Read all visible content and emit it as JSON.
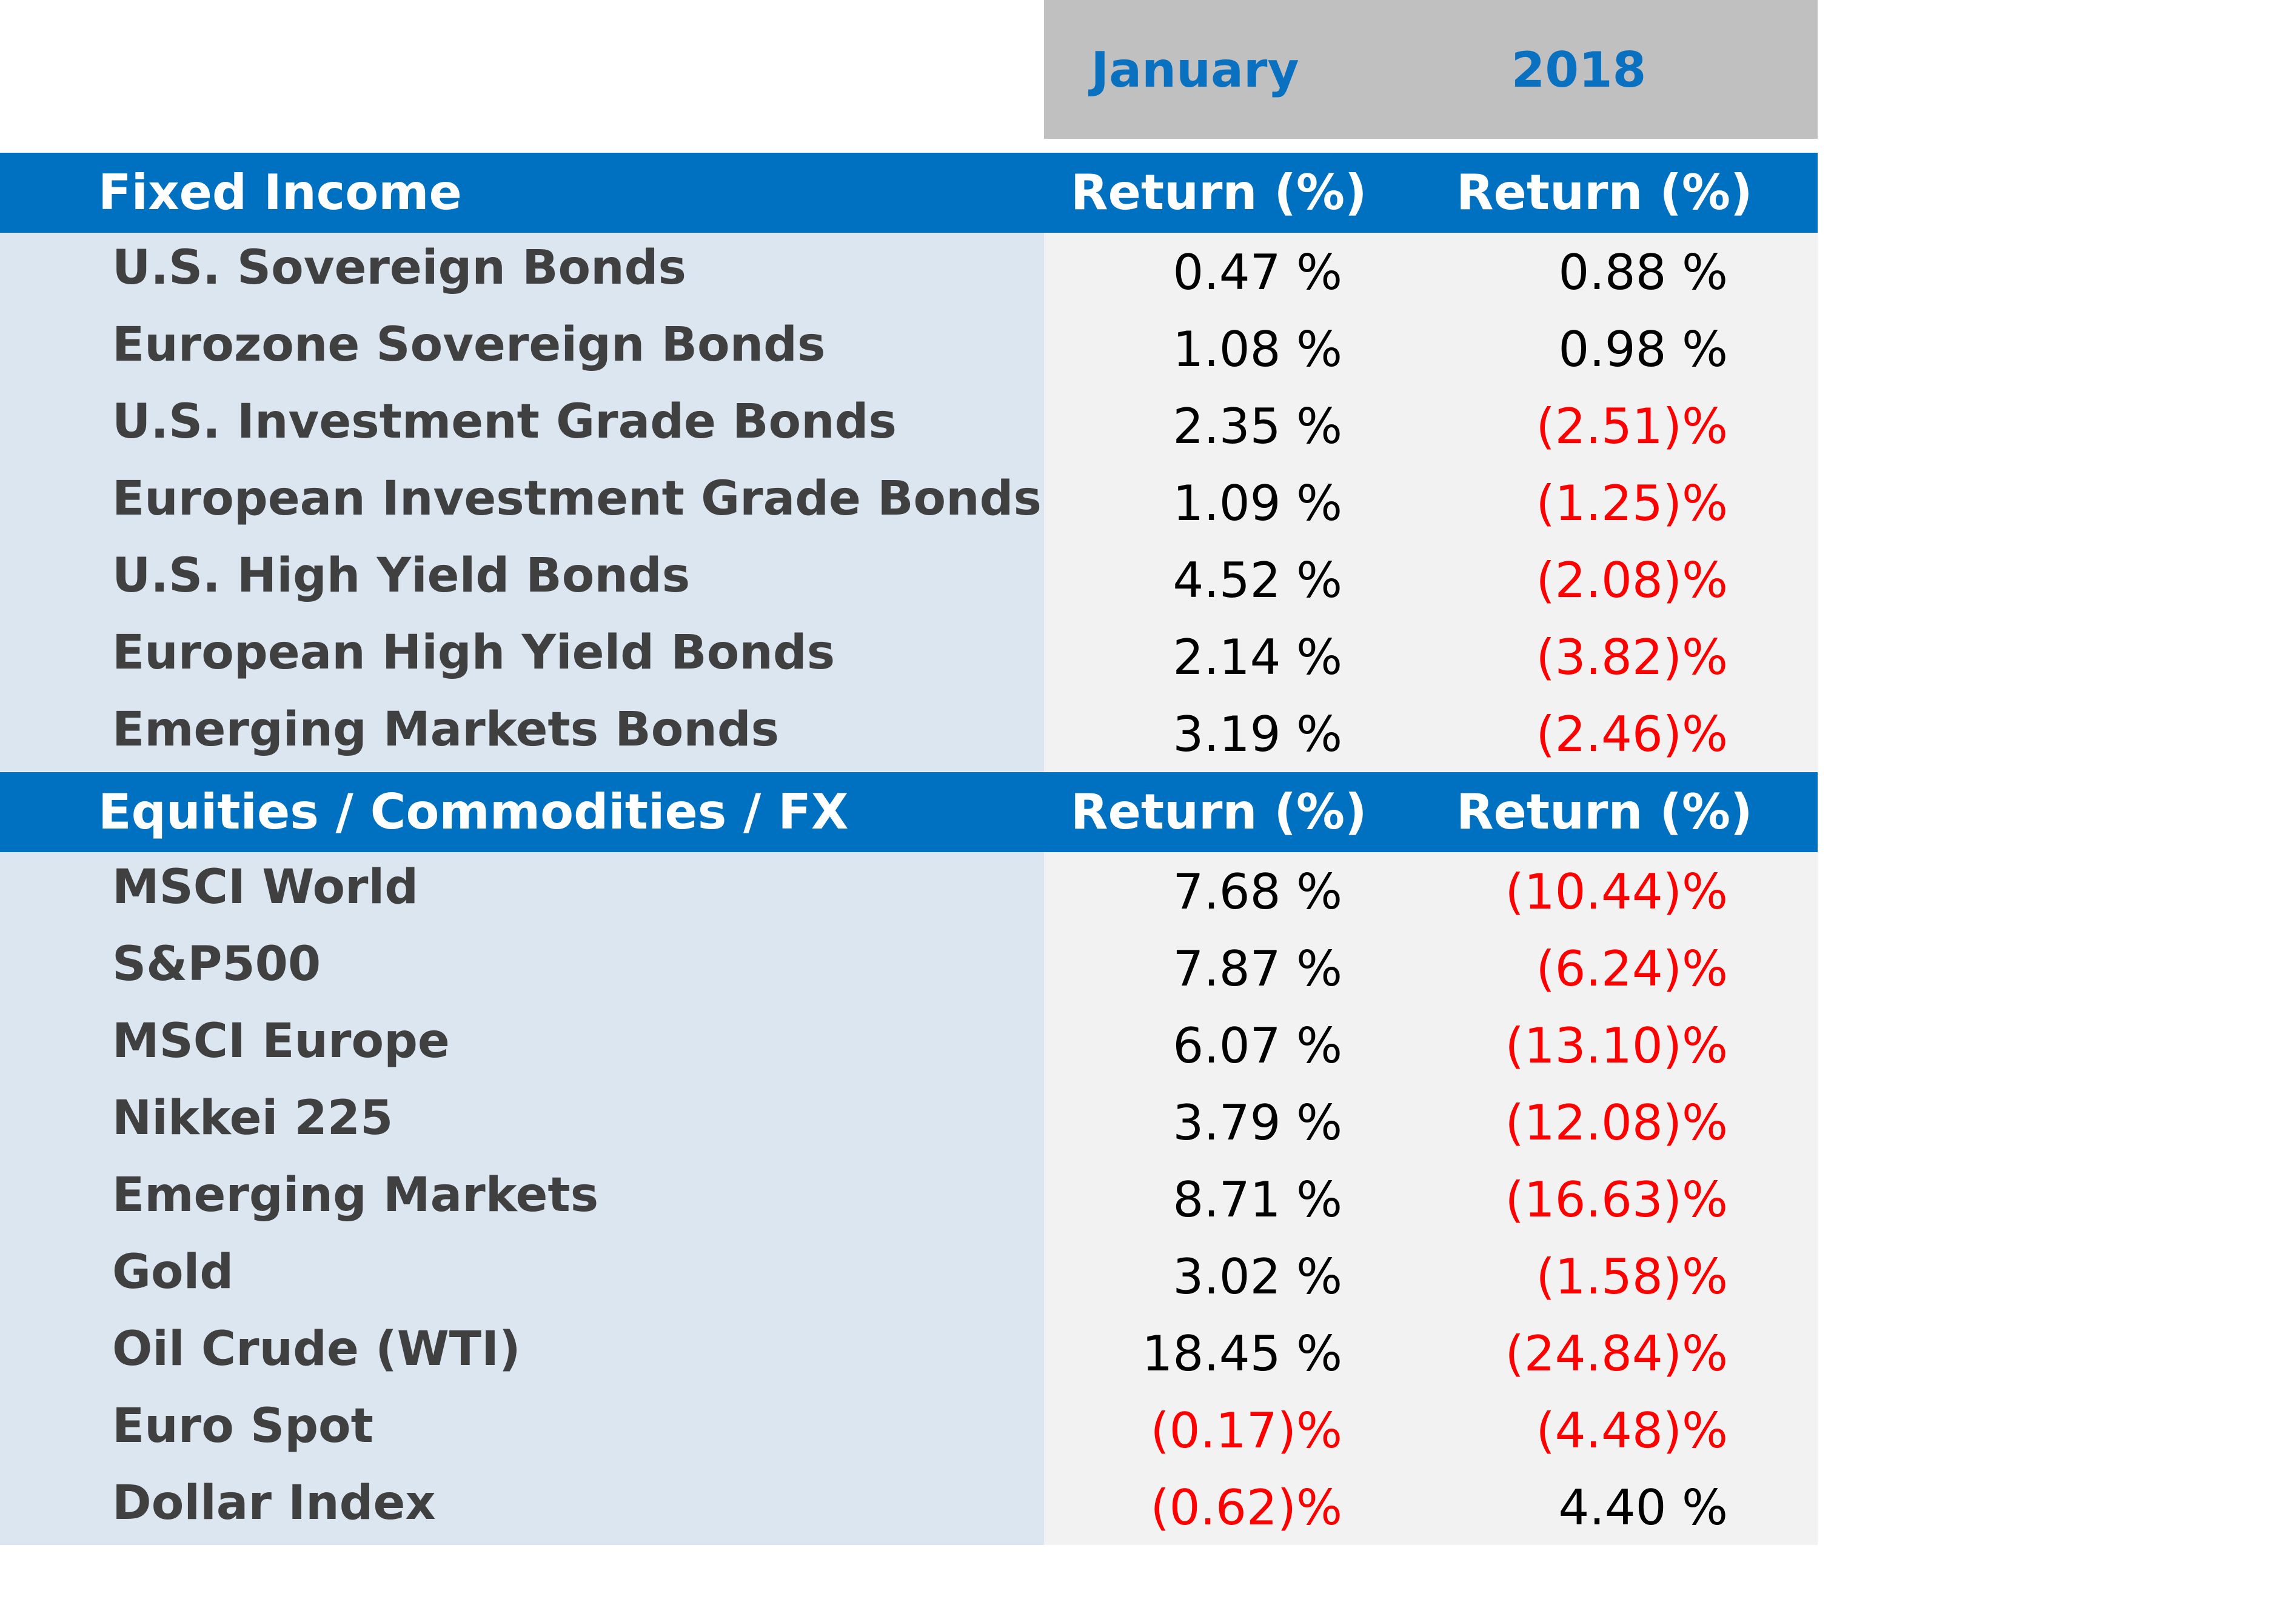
{
  "header": {
    "period_1": "January",
    "period_2": "2018"
  },
  "colors": {
    "band": "#0070c0",
    "header_text": "#0a70c0",
    "negative": "#ff0000",
    "label_bg": "#dce6f0",
    "value_bg": "#f2f2f2"
  },
  "chart_data": {
    "type": "table",
    "columns": [
      "January",
      "2018"
    ],
    "sections": [
      {
        "title": "Fixed Income",
        "col_1": "Return (%)",
        "col_2": "Return (%)",
        "rows": [
          {
            "name": "U.S. Sovereign Bonds",
            "v1": "0.47 %",
            "v2": "0.88 %",
            "n1": false,
            "n2": false
          },
          {
            "name": "Eurozone Sovereign Bonds",
            "v1": "1.08 %",
            "v2": "0.98 %",
            "n1": false,
            "n2": false
          },
          {
            "name": "U.S. Investment Grade Bonds",
            "v1": "2.35 %",
            "v2": "(2.51)%",
            "n1": false,
            "n2": true
          },
          {
            "name": "European Investment Grade Bonds",
            "v1": "1.09 %",
            "v2": "(1.25)%",
            "n1": false,
            "n2": true
          },
          {
            "name": "U.S. High Yield Bonds",
            "v1": "4.52 %",
            "v2": "(2.08)%",
            "n1": false,
            "n2": true
          },
          {
            "name": "European High Yield Bonds",
            "v1": "2.14 %",
            "v2": "(3.82)%",
            "n1": false,
            "n2": true
          },
          {
            "name": "Emerging Markets Bonds",
            "v1": "3.19 %",
            "v2": "(2.46)%",
            "n1": false,
            "n2": true
          }
        ]
      },
      {
        "title": "Equities / Commodities / FX",
        "col_1": "Return (%)",
        "col_2": "Return (%)",
        "rows": [
          {
            "name": "MSCI World",
            "v1": "7.68 %",
            "v2": "(10.44)%",
            "n1": false,
            "n2": true
          },
          {
            "name": "S&P500",
            "v1": "7.87 %",
            "v2": "(6.24)%",
            "n1": false,
            "n2": true
          },
          {
            "name": "MSCI Europe",
            "v1": "6.07 %",
            "v2": "(13.10)%",
            "n1": false,
            "n2": true
          },
          {
            "name": "Nikkei 225",
            "v1": "3.79 %",
            "v2": "(12.08)%",
            "n1": false,
            "n2": true
          },
          {
            "name": "Emerging Markets",
            "v1": "8.71 %",
            "v2": "(16.63)%",
            "n1": false,
            "n2": true
          },
          {
            "name": "Gold",
            "v1": "3.02 %",
            "v2": "(1.58)%",
            "n1": false,
            "n2": true
          },
          {
            "name": "Oil Crude (WTI)",
            "v1": "18.45 %",
            "v2": "(24.84)%",
            "n1": false,
            "n2": true
          },
          {
            "name": "Euro Spot",
            "v1": "(0.17)%",
            "v2": "(4.48)%",
            "n1": true,
            "n2": true
          },
          {
            "name": "Dollar Index",
            "v1": "(0.62)%",
            "v2": "4.40 %",
            "n1": true,
            "n2": false
          }
        ]
      }
    ]
  }
}
